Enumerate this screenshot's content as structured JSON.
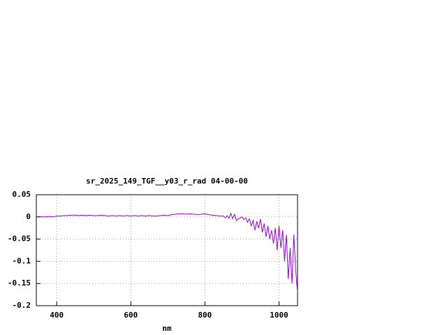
{
  "chart_data": {
    "type": "line",
    "title": "sr_2025_149_TGF__y03_r_rad 04-00-00",
    "x_label": "nm",
    "x": [
      350,
      360,
      370,
      380,
      390,
      400,
      410,
      420,
      430,
      440,
      450,
      460,
      470,
      480,
      490,
      500,
      510,
      520,
      530,
      540,
      550,
      560,
      570,
      580,
      590,
      600,
      610,
      620,
      630,
      640,
      650,
      660,
      670,
      680,
      690,
      700,
      710,
      720,
      730,
      740,
      750,
      760,
      770,
      780,
      790,
      800,
      810,
      820,
      830,
      840,
      850,
      855,
      860,
      865,
      870,
      875,
      880,
      885,
      890,
      895,
      900,
      905,
      910,
      915,
      920,
      925,
      930,
      935,
      940,
      945,
      950,
      955,
      960,
      965,
      970,
      975,
      980,
      985,
      990,
      995,
      1000,
      1005,
      1010,
      1015,
      1020,
      1025,
      1030,
      1035,
      1040,
      1045,
      1050
    ],
    "series": [
      {
        "color": "#9400d3",
        "values": [
          0.001,
          0.0,
          0.0,
          0.001,
          0.0,
          0.002,
          0.002,
          0.003,
          0.003,
          0.004,
          0.004,
          0.003,
          0.004,
          0.003,
          0.004,
          0.003,
          0.003,
          0.004,
          0.003,
          0.002,
          0.003,
          0.002,
          0.003,
          0.002,
          0.003,
          0.002,
          0.003,
          0.002,
          0.003,
          0.002,
          0.003,
          0.002,
          0.002,
          0.003,
          0.004,
          0.003,
          0.005,
          0.006,
          0.007,
          0.007,
          0.006,
          0.007,
          0.006,
          0.005,
          0.006,
          0.007,
          0.005,
          0.004,
          0.003,
          0.002,
          0.002,
          -0.002,
          0.003,
          -0.003,
          0.008,
          -0.004,
          0.006,
          -0.008,
          -0.004,
          -0.003,
          0.0,
          -0.006,
          -0.002,
          -0.012,
          -0.004,
          -0.02,
          -0.008,
          -0.03,
          -0.01,
          -0.025,
          -0.005,
          -0.035,
          -0.015,
          -0.045,
          -0.02,
          -0.05,
          -0.03,
          -0.06,
          -0.025,
          -0.075,
          -0.02,
          -0.07,
          -0.03,
          -0.1,
          -0.04,
          -0.14,
          -0.07,
          -0.15,
          -0.04,
          -0.12,
          -0.17
        ]
      }
    ],
    "xlim": [
      345,
      1050
    ],
    "ylim": [
      -0.2,
      0.05
    ],
    "xticks": [
      400,
      600,
      800,
      1000
    ],
    "yticks": [
      0.05,
      0,
      -0.05,
      -0.1,
      -0.15,
      -0.2
    ],
    "grid": true
  }
}
